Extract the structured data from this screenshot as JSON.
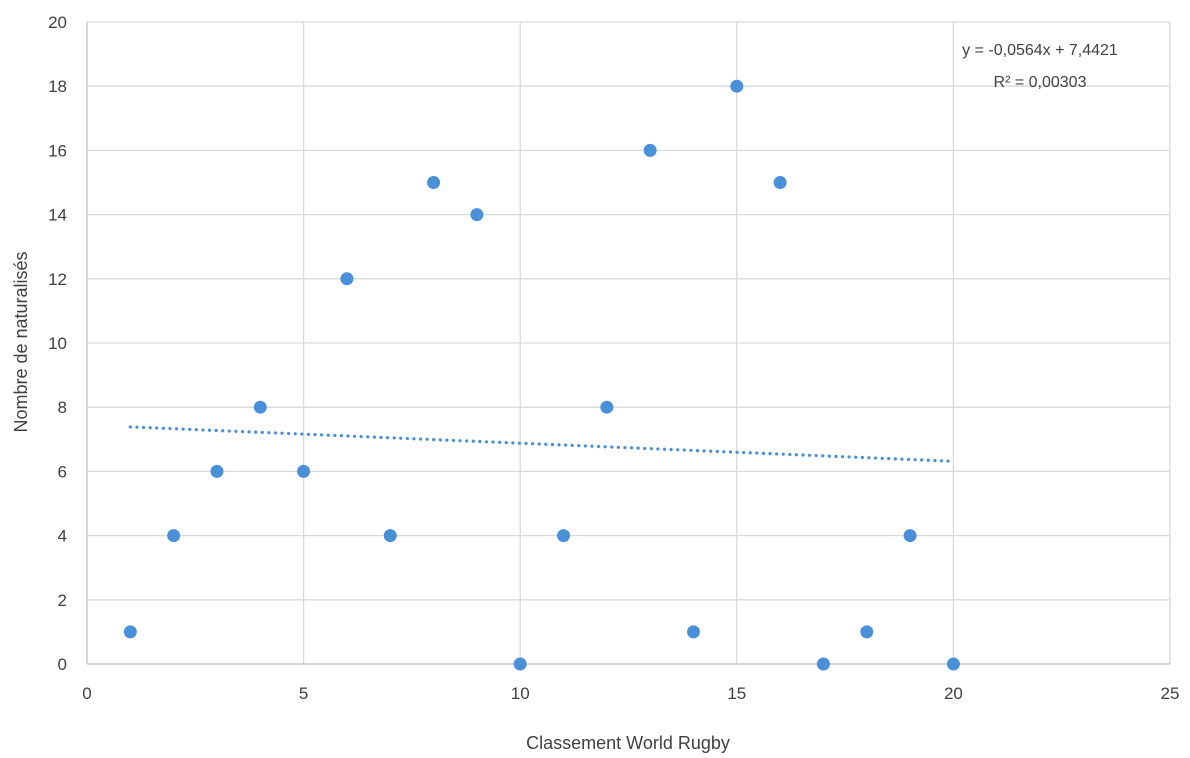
{
  "chart_data": {
    "type": "scatter",
    "xlabel": "Classement World Rugby",
    "ylabel": "Nombre  de naturalisés",
    "xlim": [
      0,
      25
    ],
    "ylim": [
      0,
      20
    ],
    "x_ticks": [
      0,
      5,
      10,
      15,
      20,
      25
    ],
    "y_ticks": [
      0,
      2,
      4,
      6,
      8,
      10,
      12,
      14,
      16,
      18,
      20
    ],
    "grid": true,
    "point_color": "#4a90d9",
    "trend_color": "#4a90d9",
    "points": [
      {
        "x": 1,
        "y": 1
      },
      {
        "x": 2,
        "y": 4
      },
      {
        "x": 3,
        "y": 6
      },
      {
        "x": 4,
        "y": 8
      },
      {
        "x": 5,
        "y": 6
      },
      {
        "x": 6,
        "y": 12
      },
      {
        "x": 7,
        "y": 4
      },
      {
        "x": 8,
        "y": 15
      },
      {
        "x": 9,
        "y": 14
      },
      {
        "x": 10,
        "y": 0
      },
      {
        "x": 11,
        "y": 4
      },
      {
        "x": 12,
        "y": 8
      },
      {
        "x": 13,
        "y": 16
      },
      {
        "x": 14,
        "y": 1
      },
      {
        "x": 15,
        "y": 18
      },
      {
        "x": 16,
        "y": 15
      },
      {
        "x": 17,
        "y": 0
      },
      {
        "x": 18,
        "y": 1
      },
      {
        "x": 19,
        "y": 4
      },
      {
        "x": 20,
        "y": 0
      }
    ],
    "trendline": {
      "type": "linear",
      "slope": -0.0564,
      "intercept": 7.4421,
      "x_range": [
        1,
        20
      ],
      "style": "dotted",
      "equation_label": "y = -0,0564x + 7,4421",
      "r2_label": "R² = 0,00303"
    }
  }
}
